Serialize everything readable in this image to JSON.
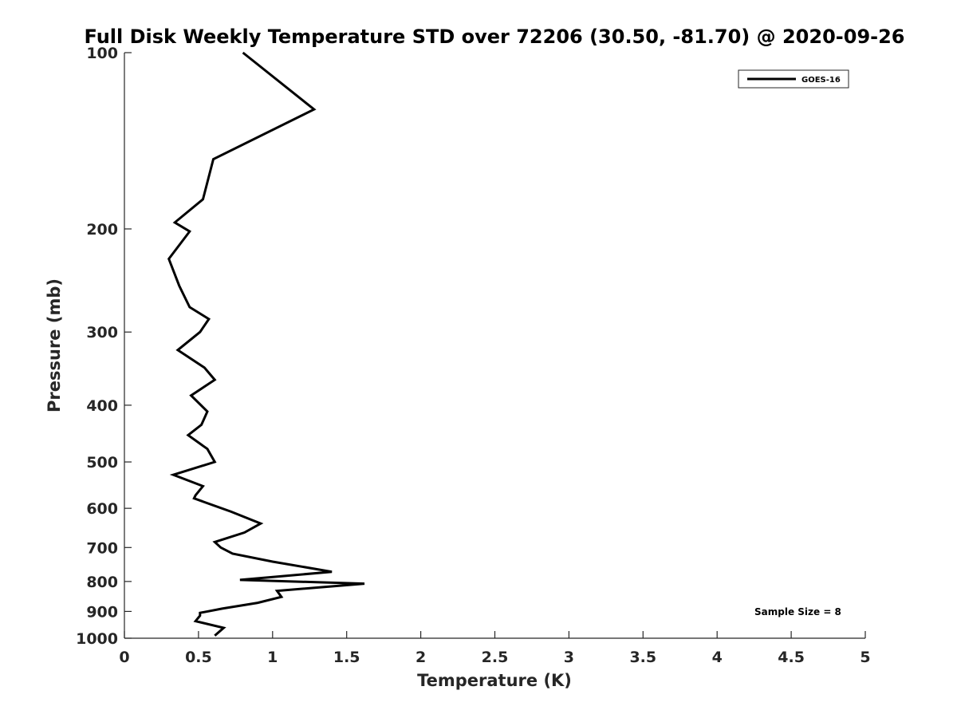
{
  "chart_data": {
    "type": "line",
    "title": "Full Disk Weekly Temperature STD over 72206 (30.50, -81.70) @ 2020-09-26",
    "xlabel": "Temperature (K)",
    "ylabel": "Pressure (mb)",
    "xlim": [
      0,
      5
    ],
    "ylim": [
      100,
      1000
    ],
    "y_scale": "log",
    "y_reversed": true,
    "x_ticks": [
      0,
      0.5,
      1,
      1.5,
      2,
      2.5,
      3,
      3.5,
      4,
      4.5,
      5
    ],
    "x_tick_labels": [
      "0",
      "0.5",
      "1",
      "1.5",
      "2",
      "2.5",
      "3",
      "3.5",
      "4",
      "4.5",
      "5"
    ],
    "y_ticks": [
      100,
      200,
      300,
      400,
      500,
      600,
      700,
      800,
      900,
      1000
    ],
    "y_tick_labels": [
      "100",
      "200",
      "300",
      "400",
      "500",
      "600",
      "700",
      "800",
      "900",
      "1000"
    ],
    "grid": false,
    "legend_position": "top-right",
    "annotation": "Sample Size = 8",
    "series": [
      {
        "name": "GOES-16",
        "color": "#000000",
        "points": [
          [
            0.8,
            100
          ],
          [
            1.28,
            125
          ],
          [
            0.6,
            152
          ],
          [
            0.53,
            178
          ],
          [
            0.34,
            195
          ],
          [
            0.44,
            202
          ],
          [
            0.3,
            225
          ],
          [
            0.37,
            250
          ],
          [
            0.44,
            272
          ],
          [
            0.57,
            285
          ],
          [
            0.51,
            300
          ],
          [
            0.36,
            322
          ],
          [
            0.54,
            345
          ],
          [
            0.61,
            362
          ],
          [
            0.45,
            385
          ],
          [
            0.56,
            410
          ],
          [
            0.52,
            432
          ],
          [
            0.43,
            450
          ],
          [
            0.56,
            475
          ],
          [
            0.61,
            500
          ],
          [
            0.33,
            526
          ],
          [
            0.53,
            550
          ],
          [
            0.48,
            570
          ],
          [
            0.47,
            577
          ],
          [
            0.72,
            608
          ],
          [
            0.92,
            637
          ],
          [
            0.81,
            660
          ],
          [
            0.61,
            685
          ],
          [
            0.65,
            700
          ],
          [
            0.73,
            717
          ],
          [
            1.0,
            740
          ],
          [
            1.4,
            770
          ],
          [
            0.78,
            795
          ],
          [
            1.62,
            807
          ],
          [
            1.03,
            830
          ],
          [
            1.06,
            850
          ],
          [
            0.9,
            870
          ],
          [
            0.66,
            890
          ],
          [
            0.51,
            905
          ],
          [
            0.51,
            915
          ],
          [
            0.48,
            935
          ],
          [
            0.67,
            960
          ],
          [
            0.61,
            990
          ]
        ]
      }
    ]
  }
}
